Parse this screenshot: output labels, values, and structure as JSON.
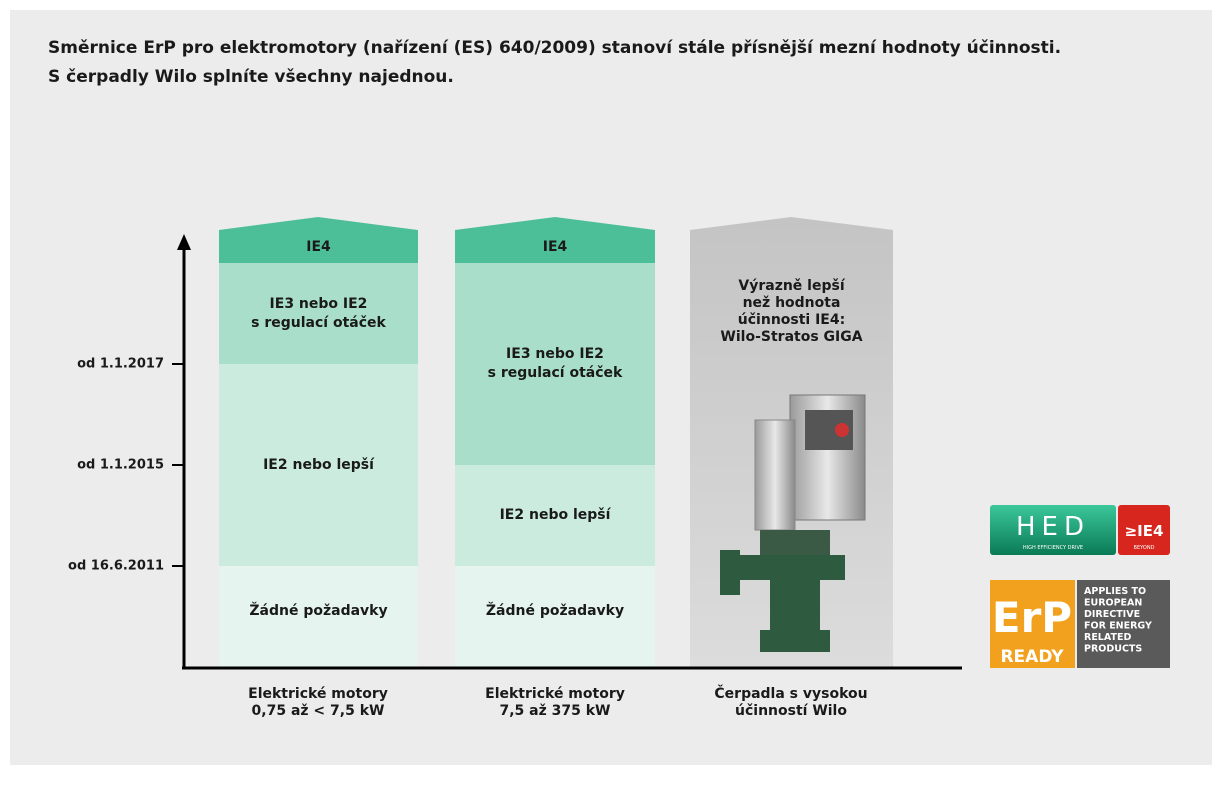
{
  "title": [
    "Směrnice ErP pro elektromotory (nařízení (ES) 640/2009) stanoví stále přísnější mezní hodnoty účinnosti.",
    "S čerpadly Wilo splníte všechny najednou."
  ],
  "axis_labels": [
    "od 1.1.2017",
    "od 1.1.2015",
    "od 16.6.2011"
  ],
  "columns": [
    {
      "cap": "IE4",
      "segments": [
        [
          "IE3 nebo IE2",
          "s regulací otáček"
        ],
        [
          "IE2 nebo lepší"
        ],
        [
          "Žádné požadavky"
        ]
      ],
      "label": [
        "Elektrické motory",
        "0,75 až < 7,5 kW"
      ]
    },
    {
      "cap": "IE4",
      "segments": [
        [
          "IE3 nebo IE2",
          "s regulací otáček"
        ],
        [
          "IE2 nebo lepší"
        ],
        [
          "Žádné požadavky"
        ]
      ],
      "label": [
        "Elektrické motory",
        "7,5 až 375 kW"
      ]
    },
    {
      "text": [
        "Výrazně lepší",
        "než hodnota",
        "účinnosti IE4:",
        "Wilo-Stratos GIGA"
      ],
      "label": [
        "Čerpadla s vysokou",
        "účinností Wilo"
      ]
    }
  ],
  "logos": {
    "hed": {
      "name": "HED",
      "sub": "HIGH EFFICIENCY DRIVE",
      "badge": "≥IE4",
      "badge_sub": "BEYOND"
    },
    "erp": {
      "name": "ErP",
      "ready": "READY",
      "text": [
        "APPLIES TO",
        "EUROPEAN",
        "DIRECTIVE",
        "FOR ENERGY",
        "RELATED",
        "PRODUCTS"
      ]
    }
  }
}
